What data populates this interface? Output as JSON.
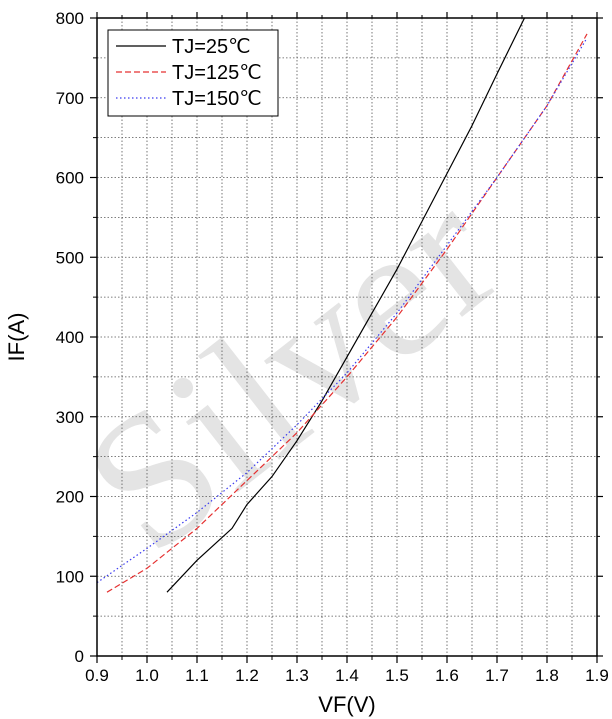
{
  "chart_data": {
    "type": "line",
    "title": "",
    "xlabel": "VF(V)",
    "ylabel": "IF(A)",
    "xlim": [
      0.9,
      1.9
    ],
    "ylim": [
      0,
      800
    ],
    "x_ticks": [
      "0.9",
      "1.0",
      "1.1",
      "1.2",
      "1.3",
      "1.4",
      "1.5",
      "1.6",
      "1.7",
      "1.8",
      "1.9"
    ],
    "y_ticks": [
      "0",
      "100",
      "200",
      "300",
      "400",
      "500",
      "600",
      "700",
      "800"
    ],
    "grid": true,
    "legend_position": "top-left",
    "series": [
      {
        "name": "TJ=25℃",
        "color": "#000000",
        "dash": "solid",
        "points": [
          [
            1.04,
            80
          ],
          [
            1.1,
            120
          ],
          [
            1.17,
            160
          ],
          [
            1.2,
            190
          ],
          [
            1.25,
            225
          ],
          [
            1.3,
            270
          ],
          [
            1.35,
            320
          ],
          [
            1.4,
            375
          ],
          [
            1.45,
            430
          ],
          [
            1.5,
            485
          ],
          [
            1.55,
            545
          ],
          [
            1.6,
            605
          ],
          [
            1.65,
            665
          ],
          [
            1.7,
            730
          ],
          [
            1.755,
            800
          ]
        ]
      },
      {
        "name": "TJ=125℃",
        "color": "#e53030",
        "dash": "dashed",
        "points": [
          [
            0.92,
            80
          ],
          [
            1.0,
            110
          ],
          [
            1.1,
            160
          ],
          [
            1.2,
            220
          ],
          [
            1.3,
            280
          ],
          [
            1.4,
            350
          ],
          [
            1.5,
            425
          ],
          [
            1.6,
            510
          ],
          [
            1.7,
            600
          ],
          [
            1.8,
            690
          ],
          [
            1.88,
            780
          ]
        ]
      },
      {
        "name": "TJ=150℃",
        "color": "#3a3af0",
        "dash": "dotted",
        "points": [
          [
            0.9,
            92
          ],
          [
            1.0,
            135
          ],
          [
            1.1,
            180
          ],
          [
            1.2,
            230
          ],
          [
            1.3,
            290
          ],
          [
            1.4,
            355
          ],
          [
            1.5,
            430
          ],
          [
            1.6,
            515
          ],
          [
            1.7,
            600
          ],
          [
            1.8,
            690
          ],
          [
            1.88,
            775
          ]
        ]
      }
    ]
  },
  "watermark": {
    "text": "Silver"
  }
}
